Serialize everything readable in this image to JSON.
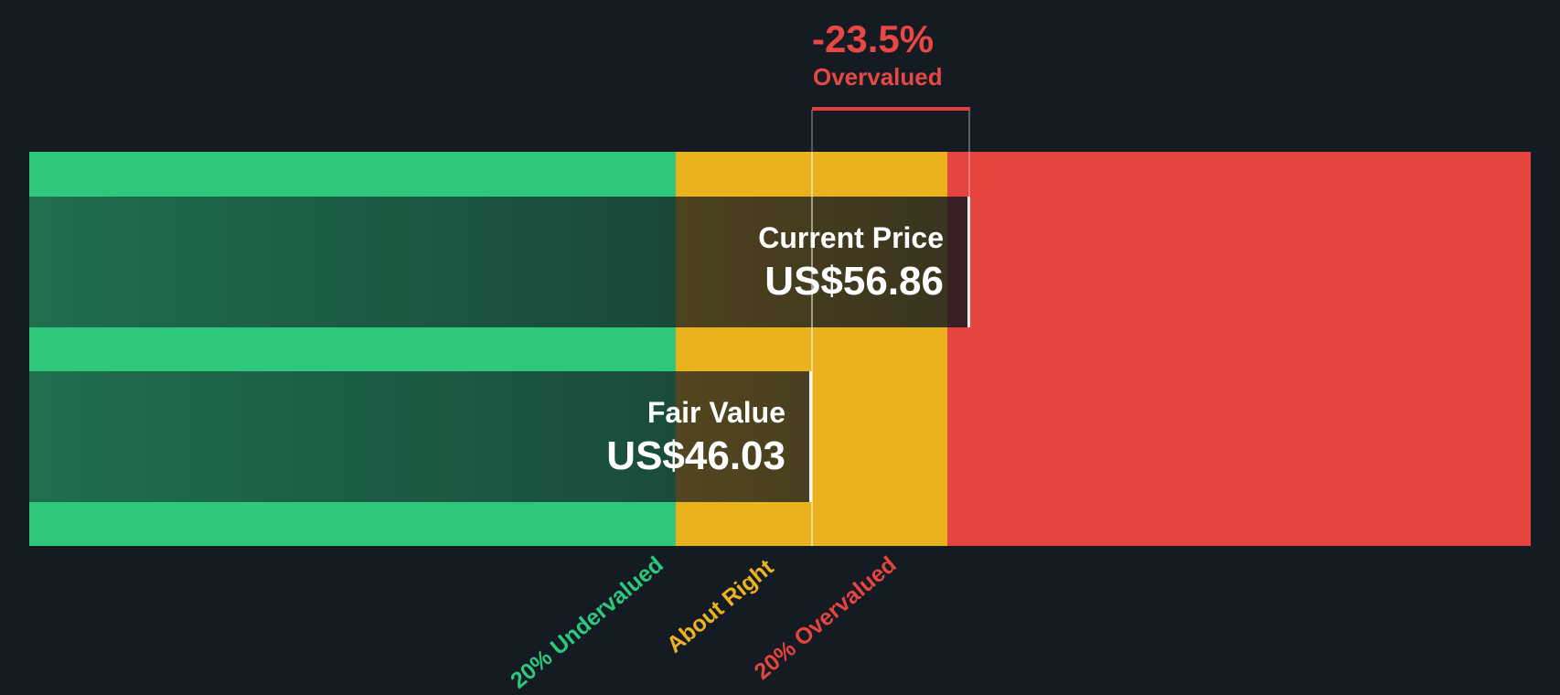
{
  "background_color": "#151b23",
  "annotation": {
    "percent": "-23.5%",
    "status": "Overvalued",
    "color": "#e74843"
  },
  "chart_data": {
    "type": "bar",
    "bars": [
      {
        "label": "Current Price",
        "value": 56.86,
        "display": "US$56.86"
      },
      {
        "label": "Fair Value",
        "value": 46.03,
        "display": "US$46.03"
      }
    ],
    "annotation": {
      "percent": -23.5,
      "percent_display": "-23.5%",
      "status": "Overvalued"
    },
    "zones": [
      {
        "label": "20% Undervalued",
        "color": "#2ec87d"
      },
      {
        "label": "About Right",
        "color": "#eab31e"
      },
      {
        "label": "20% Overvalued",
        "color": "#e5443f"
      }
    ],
    "currency_prefix": "US$",
    "grid": false,
    "legend_position": "none"
  }
}
